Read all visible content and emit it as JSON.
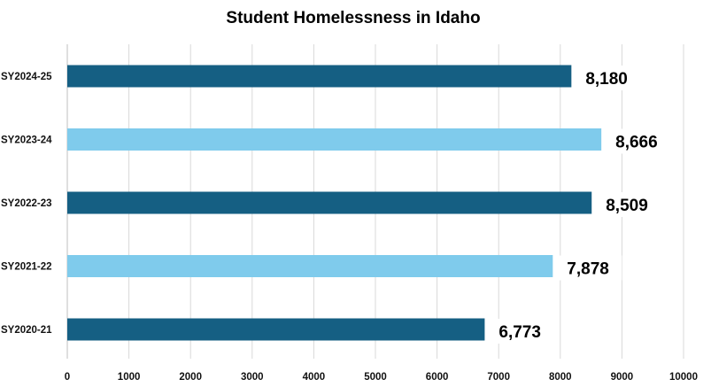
{
  "chart_data": {
    "type": "bar",
    "orientation": "horizontal",
    "title": "Student Homelessness in Idaho",
    "xlabel": "",
    "ylabel": "",
    "categories": [
      "SY2024-25",
      "SY2023-24",
      "SY2022-23",
      "SY2021-22",
      "SY2020-21"
    ],
    "values": [
      8180,
      8666,
      8509,
      7878,
      6773
    ],
    "data_labels": [
      "8,180",
      "8,666",
      "8,509",
      "7,878",
      "6,773"
    ],
    "xlim": [
      0,
      10000
    ],
    "xticks": [
      0,
      1000,
      2000,
      3000,
      4000,
      5000,
      6000,
      7000,
      8000,
      9000,
      10000
    ],
    "grid": true,
    "legend": "none",
    "bar_colors": [
      "#155f83",
      "#7fcbec",
      "#155f83",
      "#7fcbec",
      "#155f83"
    ]
  }
}
